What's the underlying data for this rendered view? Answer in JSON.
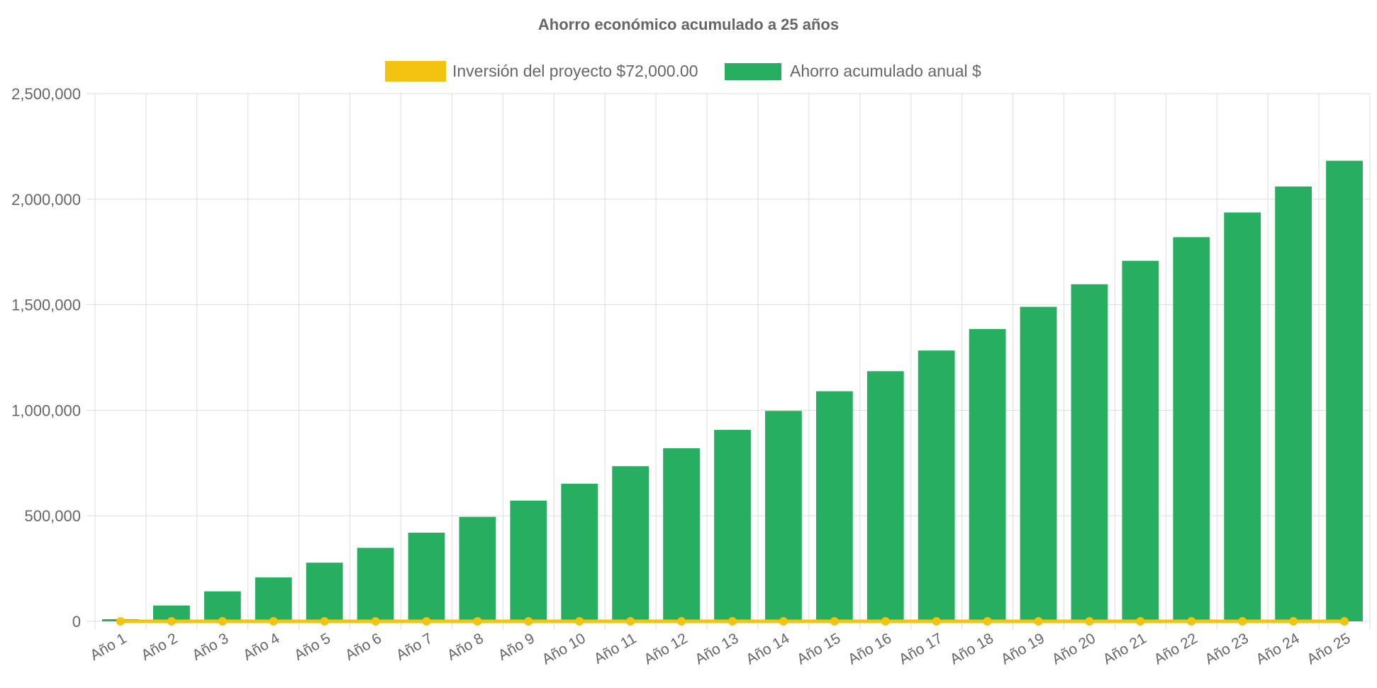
{
  "chart_data": {
    "type": "bar",
    "title": "Ahorro económico acumulado a 25 años",
    "legend_position": "top-center",
    "grid": true,
    "categories": [
      "Año 1",
      "Año 2",
      "Año 3",
      "Año 4",
      "Año 5",
      "Año 6",
      "Año 7",
      "Año 8",
      "Año 9",
      "Año 10",
      "Año 11",
      "Año 12",
      "Año 13",
      "Año 14",
      "Año 15",
      "Año 16",
      "Año 17",
      "Año 18",
      "Año 19",
      "Año 20",
      "Año 21",
      "Año 22",
      "Año 23",
      "Año 24",
      "Año 25"
    ],
    "ylim": [
      0,
      2500000
    ],
    "y_ticks": [
      0,
      500000,
      1000000,
      1500000,
      2000000,
      2500000
    ],
    "y_tick_labels": [
      "0",
      "500,000",
      "1,000,000",
      "1,500,000",
      "2,000,000",
      "2,500,000"
    ],
    "series": [
      {
        "name": "Inversión del proyecto $72,000.00",
        "type": "line",
        "color": "#f2c40f",
        "values": [
          0,
          0,
          0,
          0,
          0,
          0,
          0,
          0,
          0,
          0,
          0,
          0,
          0,
          0,
          0,
          0,
          0,
          0,
          0,
          0,
          0,
          0,
          0,
          0,
          0
        ]
      },
      {
        "name": "Ahorro acumulado anual $",
        "type": "bar",
        "color": "#27ae60",
        "values": [
          10000,
          75000,
          142000,
          208000,
          278000,
          348000,
          420000,
          495000,
          572000,
          652000,
          735000,
          820000,
          907000,
          997000,
          1090000,
          1185000,
          1283000,
          1385000,
          1490000,
          1597000,
          1708000,
          1820000,
          1937000,
          2060000,
          2182000
        ]
      }
    ]
  }
}
